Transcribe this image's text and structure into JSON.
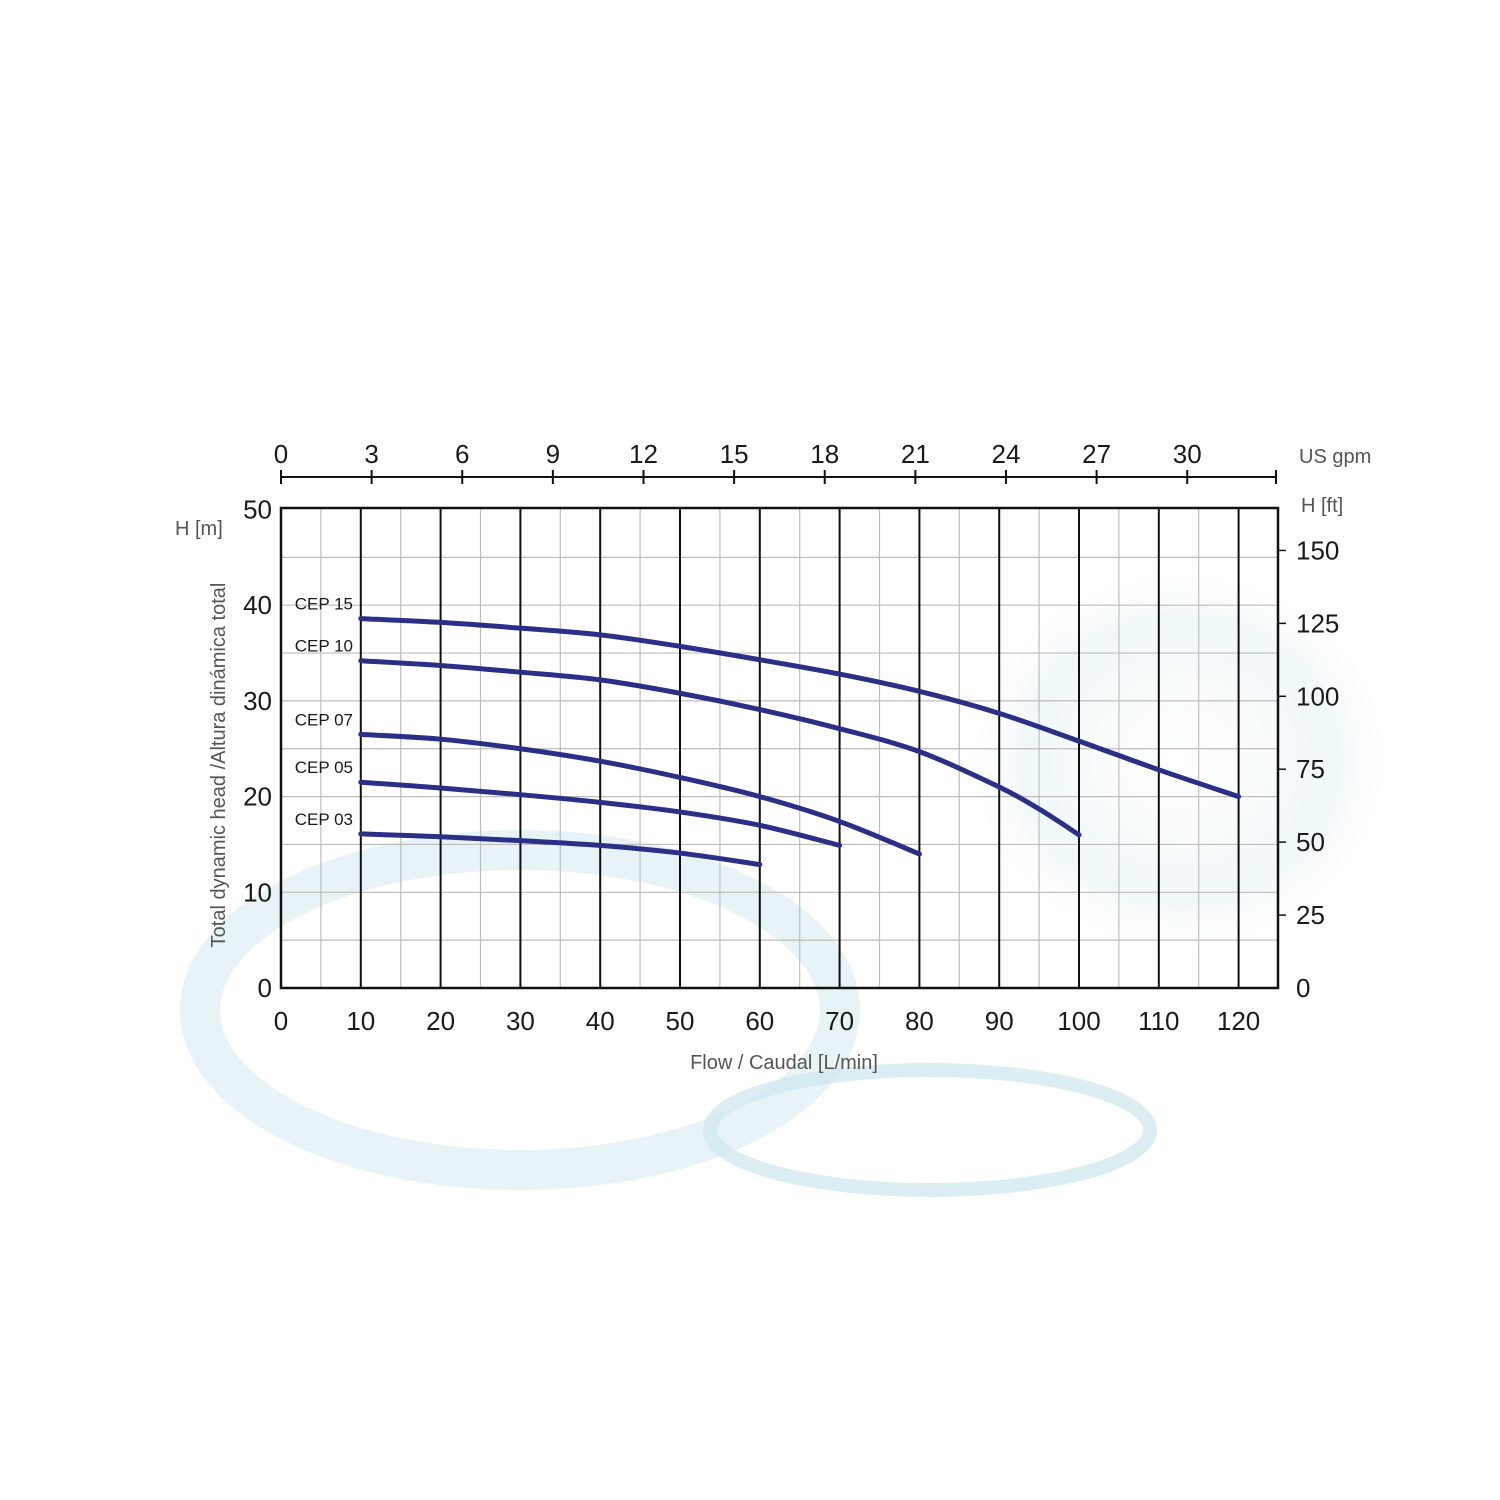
{
  "chart_data": {
    "type": "line",
    "x_axis": {
      "label": "Flow / Caudal [L/min]",
      "range": [
        0,
        125
      ],
      "ticks": [
        0,
        10,
        20,
        30,
        40,
        50,
        60,
        70,
        80,
        90,
        100,
        110,
        120
      ]
    },
    "x2_axis": {
      "unit": "US gpm",
      "ticks": [
        0,
        3,
        6,
        9,
        12,
        15,
        18,
        21,
        24,
        27,
        30
      ]
    },
    "y_axis": {
      "unit": "H [m]",
      "label": "Total dynamic head /Altura dinámica total",
      "range": [
        0,
        50
      ],
      "ticks": [
        0,
        10,
        20,
        30,
        40,
        50
      ]
    },
    "y2_axis": {
      "unit": "H  [ft]",
      "ticks": [
        0,
        25,
        50,
        75,
        100,
        125,
        150
      ]
    },
    "grid": true,
    "series": [
      {
        "name": "CEP 15",
        "x": [
          10,
          20,
          30,
          40,
          50,
          60,
          70,
          80,
          90,
          100,
          110,
          120
        ],
        "y": [
          38.6,
          38.2,
          37.6,
          36.9,
          35.7,
          34.3,
          32.8,
          31.0,
          28.7,
          25.8,
          22.8,
          20.0
        ]
      },
      {
        "name": "CEP 10",
        "x": [
          10,
          20,
          30,
          40,
          50,
          60,
          70,
          80,
          90,
          95,
          100
        ],
        "y": [
          34.2,
          33.7,
          33.0,
          32.2,
          30.8,
          29.1,
          27.1,
          24.7,
          21.0,
          18.7,
          16.0
        ]
      },
      {
        "name": "CEP 07",
        "x": [
          10,
          20,
          30,
          40,
          50,
          60,
          70,
          80
        ],
        "y": [
          26.5,
          26.0,
          25.0,
          23.7,
          22.0,
          20.0,
          17.4,
          14.0
        ]
      },
      {
        "name": "CEP 05",
        "x": [
          10,
          20,
          30,
          40,
          50,
          60,
          70
        ],
        "y": [
          21.5,
          20.9,
          20.2,
          19.4,
          18.4,
          17.0,
          14.9
        ]
      },
      {
        "name": "CEP 03",
        "x": [
          10,
          20,
          30,
          40,
          50,
          60
        ],
        "y": [
          16.1,
          15.8,
          15.4,
          14.9,
          14.1,
          12.9
        ]
      }
    ],
    "colors": {
      "curve": "#2b2f86",
      "grid_major": "#111111",
      "grid_minor": "#bdbdbd",
      "frame": "#111111"
    }
  }
}
